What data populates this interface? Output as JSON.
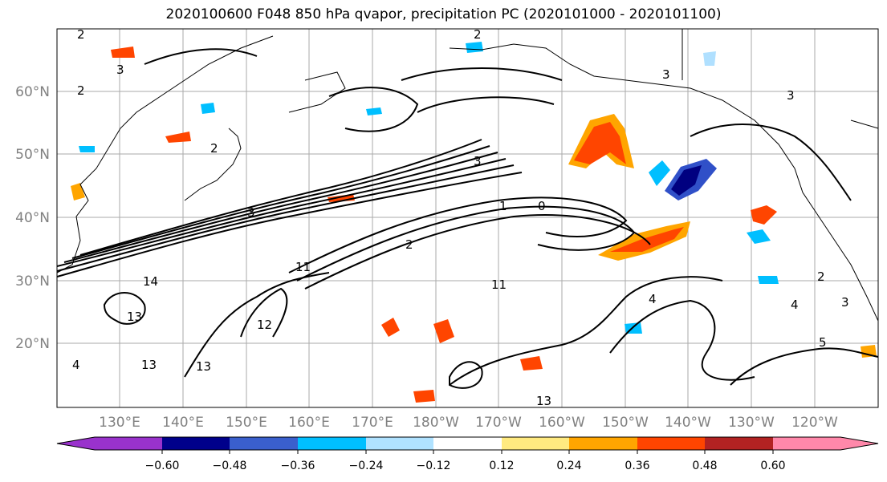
{
  "title": "2020100600 F048 850 hPa qvapor, precipitation PC (2020101000 - 2020101100)",
  "map": {
    "lat_labels": [
      "60°N",
      "50°N",
      "40°N",
      "30°N",
      "20°N"
    ],
    "lon_labels": [
      "130°E",
      "140°E",
      "150°E",
      "160°E",
      "170°E",
      "180°W",
      "170°W",
      "160°W",
      "150°W",
      "140°W",
      "130°W",
      "120°W"
    ],
    "contour_labels": [
      "2",
      "3",
      "2",
      "2",
      "3",
      "3",
      "0",
      "1",
      "2",
      "3",
      "4",
      "11",
      "14",
      "13",
      "12",
      "13",
      "4",
      "5",
      "3",
      "4",
      "2",
      "11",
      "13",
      "13",
      "2",
      "3"
    ],
    "colors": {
      "neg_strong": "#000080",
      "neg_med": "#3050c8",
      "neg_light": "#00bfff",
      "neg_pale": "#b0e0ff",
      "pos_pale": "#ffe680",
      "pos_light": "#ffa500",
      "pos_med": "#ff4500",
      "pos_strong": "#b22222"
    }
  },
  "colorbar": {
    "colors": [
      "#9932cc",
      "#00008b",
      "#3a5fcd",
      "#00bfff",
      "#b0e2ff",
      "#ffffff",
      "#ffea80",
      "#ffa500",
      "#ff4500",
      "#b22222",
      "#ff88aa"
    ],
    "ticks": [
      "−0.60",
      "−0.48",
      "−0.36",
      "−0.24",
      "−0.12",
      "0.12",
      "0.24",
      "0.36",
      "0.48",
      "0.60"
    ]
  }
}
